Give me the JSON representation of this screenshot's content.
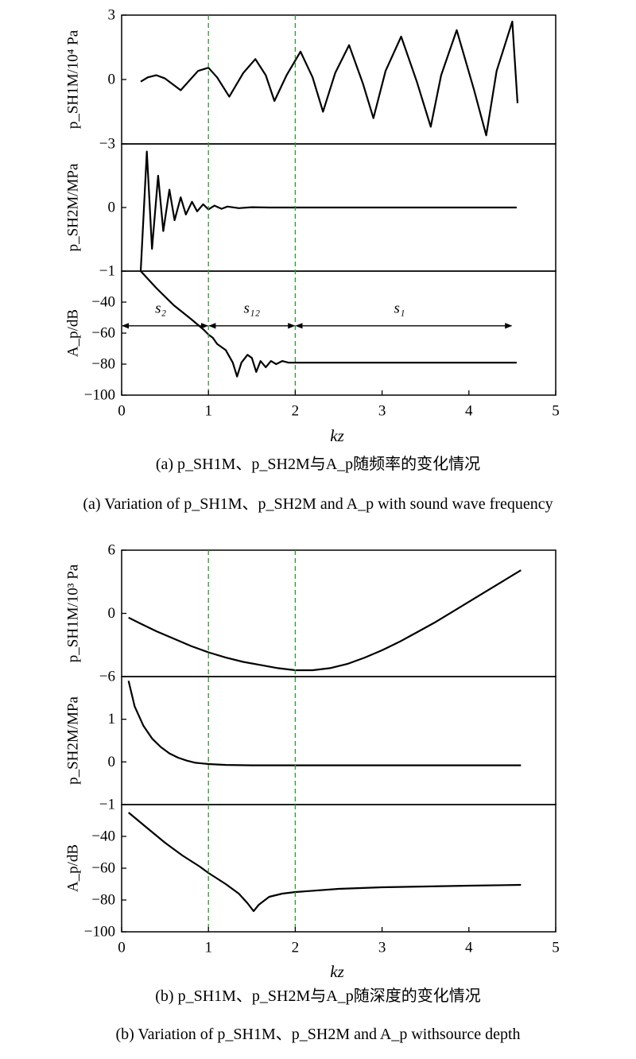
{
  "colors": {
    "axes": "#000000",
    "line": "#000000",
    "vline": "#2a9a2a"
  },
  "chart_data": [
    {
      "id": "a",
      "type": "line",
      "xlabel": "kz",
      "xlim": [
        0,
        5
      ],
      "xticks": [
        "0",
        "1",
        "2",
        "3",
        "4",
        "5"
      ],
      "vlines": [
        1,
        2
      ],
      "panels": [
        {
          "ylabel": "p_SH1M/10⁴ Pa",
          "ylim": [
            -3,
            3
          ],
          "yticks": [
            {
              "v": 3,
              "t": "3"
            },
            {
              "v": 0,
              "t": "0"
            },
            {
              "v": -3,
              "t": "−3"
            }
          ],
          "series": {
            "x": [
              0.22,
              0.3,
              0.4,
              0.5,
              0.68,
              0.88,
              1.0,
              1.1,
              1.24,
              1.4,
              1.54,
              1.66,
              1.76,
              1.9,
              2.06,
              2.2,
              2.32,
              2.46,
              2.62,
              2.78,
              2.9,
              3.04,
              3.22,
              3.4,
              3.56,
              3.68,
              3.86,
              4.06,
              4.2,
              4.32,
              4.5,
              4.56
            ],
            "y": [
              -0.1,
              0.1,
              0.2,
              0.05,
              -0.5,
              0.4,
              0.55,
              0.1,
              -0.8,
              0.3,
              0.95,
              0.2,
              -1.0,
              0.2,
              1.3,
              0.1,
              -1.5,
              0.3,
              1.6,
              -0.2,
              -1.8,
              0.4,
              2.0,
              -0.1,
              -2.2,
              0.2,
              2.3,
              -0.5,
              -2.6,
              0.4,
              2.7,
              -1.1
            ]
          }
        },
        {
          "ylabel": "p_SH2M/MPa",
          "ylim": [
            -1,
            1
          ],
          "yticks": [
            {
              "v": 0,
              "t": "0"
            },
            {
              "v": -1,
              "t": "−1"
            }
          ],
          "series": {
            "x": [
              0.22,
              0.29,
              0.35,
              0.42,
              0.48,
              0.55,
              0.61,
              0.68,
              0.74,
              0.81,
              0.87,
              0.94,
              1.0,
              1.07,
              1.15,
              1.22,
              1.35,
              1.5,
              1.7,
              2.0,
              3.0,
              4.0,
              4.55
            ],
            "y": [
              -1.0,
              0.88,
              -0.65,
              0.5,
              -0.37,
              0.28,
              -0.2,
              0.16,
              -0.11,
              0.09,
              -0.06,
              0.05,
              -0.03,
              0.03,
              -0.02,
              0.015,
              -0.01,
              0.005,
              0,
              0,
              0,
              0,
              0
            ]
          }
        },
        {
          "ylabel": "A_p/dB",
          "ylim": [
            -100,
            -20
          ],
          "yticks": [
            {
              "v": -40,
              "t": "−40"
            },
            {
              "v": -60,
              "t": "−60"
            },
            {
              "v": -80,
              "t": "−80"
            },
            {
              "v": -100,
              "t": "−100"
            }
          ],
          "series": {
            "x": [
              0.22,
              0.4,
              0.6,
              0.8,
              0.95,
              1.0,
              1.05,
              1.1,
              1.2,
              1.28,
              1.33,
              1.38,
              1.45,
              1.5,
              1.55,
              1.6,
              1.66,
              1.72,
              1.78,
              1.85,
              1.92,
              2.0,
              2.5,
              3.0,
              3.5,
              4.0,
              4.55
            ],
            "y": [
              -20,
              -31,
              -42,
              -51,
              -58,
              -61,
              -63,
              -67,
              -71,
              -79,
              -88,
              -79,
              -74,
              -76,
              -85,
              -78,
              -82,
              -78,
              -80,
              -78,
              -79,
              -79,
              -79,
              -79,
              -79,
              -79,
              -79
            ]
          },
          "annotations": [
            {
              "text": "s₂",
              "x": 0.45,
              "y": -44,
              "arrow": [
                0,
                1
              ]
            },
            {
              "text": "s₁₂",
              "x": 1.5,
              "y": -44,
              "arrow": [
                1,
                2
              ]
            },
            {
              "text": "s₁",
              "x": 3.2,
              "y": -44,
              "arrow": [
                2,
                4.5
              ]
            }
          ]
        }
      ]
    },
    {
      "id": "b",
      "type": "line",
      "xlabel": "kz",
      "xlim": [
        0,
        5
      ],
      "xticks": [
        "0",
        "1",
        "2",
        "3",
        "4",
        "5"
      ],
      "vlines": [
        1,
        2
      ],
      "panels": [
        {
          "ylabel": "p_SH1M/10³ Pa",
          "ylim": [
            -6,
            6
          ],
          "yticks": [
            {
              "v": 6,
              "t": "6"
            },
            {
              "v": 0,
              "t": "0"
            },
            {
              "v": -6,
              "t": "−6"
            }
          ],
          "series": {
            "x": [
              0.08,
              0.2,
              0.4,
              0.6,
              0.8,
              1.0,
              1.2,
              1.4,
              1.6,
              1.8,
              2.0,
              2.2,
              2.4,
              2.6,
              2.8,
              3.0,
              3.2,
              3.4,
              3.6,
              3.8,
              4.0,
              4.2,
              4.4,
              4.6
            ],
            "y": [
              -0.4,
              -0.9,
              -1.7,
              -2.4,
              -3.1,
              -3.7,
              -4.2,
              -4.6,
              -4.9,
              -5.2,
              -5.4,
              -5.4,
              -5.2,
              -4.8,
              -4.2,
              -3.5,
              -2.7,
              -1.8,
              -0.9,
              0.1,
              1.1,
              2.1,
              3.1,
              4.1
            ]
          }
        },
        {
          "ylabel": "p_SH2M/MPa",
          "ylim": [
            -1,
            2
          ],
          "yticks": [
            {
              "v": 1,
              "t": "1"
            },
            {
              "v": 0,
              "t": "0"
            },
            {
              "v": -1,
              "t": "−1"
            }
          ],
          "series": {
            "x": [
              0.08,
              0.15,
              0.25,
              0.35,
              0.45,
              0.55,
              0.65,
              0.75,
              0.85,
              1.0,
              1.2,
              1.5,
              2.0,
              3.0,
              4.0,
              4.6
            ],
            "y": [
              1.9,
              1.3,
              0.85,
              0.55,
              0.35,
              0.2,
              0.1,
              0.03,
              -0.02,
              -0.05,
              -0.07,
              -0.08,
              -0.08,
              -0.08,
              -0.08,
              -0.08
            ]
          }
        },
        {
          "ylabel": "A_p/dB",
          "ylim": [
            -100,
            -20
          ],
          "yticks": [
            {
              "v": -40,
              "t": "−40"
            },
            {
              "v": -60,
              "t": "−60"
            },
            {
              "v": -80,
              "t": "−80"
            },
            {
              "v": -100,
              "t": "−100"
            }
          ],
          "series": {
            "x": [
              0.08,
              0.3,
              0.5,
              0.7,
              0.9,
              1.0,
              1.2,
              1.35,
              1.45,
              1.52,
              1.58,
              1.7,
              1.85,
              2.0,
              2.5,
              3.0,
              3.5,
              4.0,
              4.6
            ],
            "y": [
              -25,
              -35,
              -44,
              -52,
              -59,
              -63,
              -70,
              -76,
              -82,
              -87,
              -83,
              -78,
              -76,
              -75,
              -73,
              -72,
              -71.5,
              -71,
              -70.5
            ]
          }
        }
      ]
    }
  ],
  "captions": {
    "a_cn": "(a) p_SH1M、p_SH2M与A_p随频率的变化情况",
    "a_en": "(a) Variation of p_SH1M、p_SH2M and A_p with sound wave frequency",
    "b_cn": "(b) p_SH1M、p_SH2M与A_p随深度的变化情况",
    "b_en": "(b) Variation of p_SH1M、p_SH2M and A_p withsource depth"
  }
}
